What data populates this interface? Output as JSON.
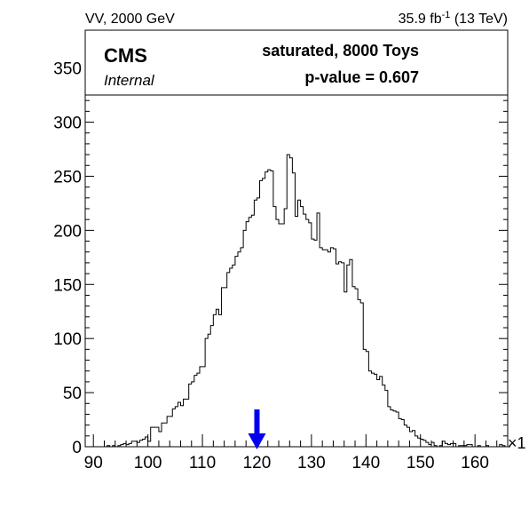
{
  "header": {
    "left_label": "VV, 2000 GeV",
    "right_label_prefix": "35.9 fb",
    "right_label_exp": "-1",
    "right_label_suffix": " (13 TeV)"
  },
  "legend": {
    "experiment": "CMS",
    "status": "Internal",
    "line1": "saturated, 8000 Toys",
    "line2": "p-value = 0.607"
  },
  "chart_data": {
    "type": "histogram",
    "x_tick_labels": [
      "90",
      "100",
      "110",
      "120",
      "130",
      "140",
      "150",
      "160"
    ],
    "y_tick_labels": [
      "0",
      "50",
      "100",
      "150",
      "200",
      "250",
      "300",
      "350"
    ],
    "x_multiplier_label": "×1",
    "xlim": [
      88.5,
      166
    ],
    "ylim": [
      0,
      385
    ],
    "bin_width": 0.5,
    "x_start": 89.5,
    "counts": [
      0,
      0,
      0,
      0,
      0,
      0,
      1,
      0,
      1,
      0,
      1,
      2,
      3,
      2,
      3,
      5,
      5,
      4,
      6,
      7,
      9,
      5,
      18,
      18,
      18,
      14,
      22,
      22,
      28,
      28,
      35,
      37,
      41,
      38,
      44,
      44,
      58,
      60,
      66,
      68,
      74,
      74,
      100,
      104,
      112,
      122,
      127,
      122,
      147,
      147,
      161,
      165,
      168,
      176,
      180,
      184,
      200,
      208,
      212,
      214,
      228,
      230,
      246,
      248,
      254,
      256,
      255,
      222,
      210,
      206,
      206,
      220,
      270,
      267,
      253,
      213,
      228,
      222,
      215,
      210,
      207,
      192,
      191,
      216,
      184,
      182,
      182,
      180,
      184,
      183,
      169,
      171,
      170,
      143,
      168,
      173,
      148,
      146,
      136,
      133,
      90,
      88,
      70,
      68,
      67,
      62,
      65,
      57,
      52,
      37,
      34,
      33,
      32,
      26,
      25,
      20,
      18,
      14,
      15,
      10,
      8,
      7,
      6,
      4,
      2,
      4,
      1,
      0,
      1,
      5,
      3,
      2,
      3,
      3,
      0,
      1,
      1,
      1,
      2,
      2,
      0,
      0,
      1,
      0,
      0,
      1,
      0,
      0,
      0,
      0,
      2,
      1,
      0,
      0
    ],
    "observed_x": 120,
    "colors": {
      "histogram": "#000000",
      "observed_arrow": "#0000ee"
    }
  }
}
